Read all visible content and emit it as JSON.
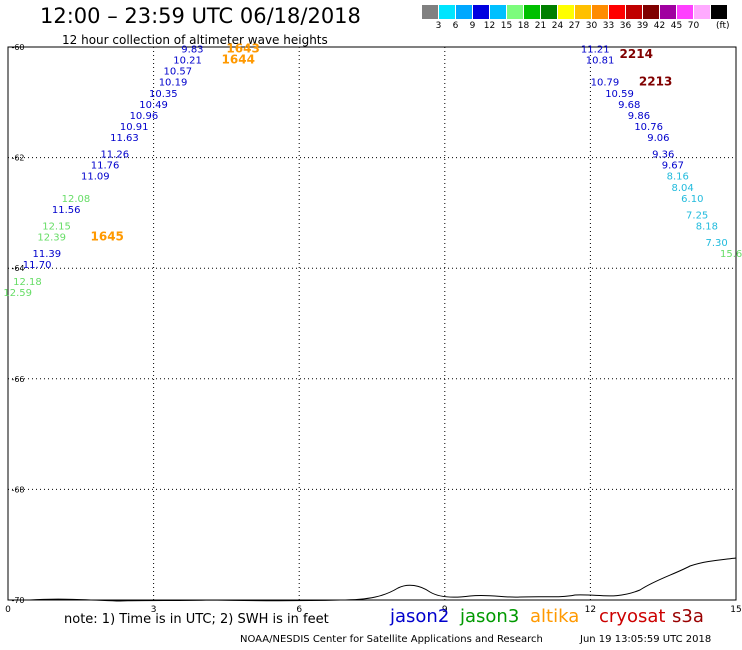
{
  "header": {
    "title": "12:00 – 23:59 UTC 06/18/2018",
    "subtitle": "12 hour collection of altimeter wave heights"
  },
  "color_scale": {
    "colors": [
      "#808080",
      "#00e5ff",
      "#00a8ff",
      "#0000e0",
      "#00c0ff",
      "#7cfc7c",
      "#00c000",
      "#008000",
      "#ffff00",
      "#ffc000",
      "#ff8c00",
      "#ff0000",
      "#c00000",
      "#800000",
      "#a000a0",
      "#ff40ff",
      "#ffaaff",
      "#000000"
    ],
    "labels": [
      "3",
      "6",
      "9",
      "12",
      "15",
      "18",
      "21",
      "24",
      "27",
      "30",
      "33",
      "36",
      "39",
      "42",
      "45",
      "70"
    ],
    "unit": "(ft)"
  },
  "chart_data": {
    "type": "scatter",
    "x_ticks": [
      "0",
      "3",
      "6",
      "9",
      "12",
      "15"
    ],
    "y_ticks": [
      "-60",
      "-62",
      "-64",
      "-66",
      "-68",
      "-70"
    ],
    "xlim": [
      0,
      15
    ],
    "ylim": [
      -70,
      -60
    ],
    "grid": true,
    "pass_labels": [
      {
        "text": "1643",
        "lon": 4.5,
        "lat": -60.1,
        "color": "#ff9900"
      },
      {
        "text": "1644",
        "lon": 4.4,
        "lat": -60.3,
        "color": "#ff9900"
      },
      {
        "text": "1645",
        "lon": 1.7,
        "lat": -63.5,
        "color": "#ff9900"
      },
      {
        "text": "2214",
        "lon": 12.6,
        "lat": -60.2,
        "color": "#800000"
      },
      {
        "text": "2213",
        "lon": 13.0,
        "lat": -60.7,
        "color": "#800000"
      }
    ],
    "series": [
      {
        "name": "jason2",
        "color": "#0000cc",
        "points": [
          {
            "lon": 3.8,
            "lat": -60.1,
            "v": "9.83"
          },
          {
            "lon": 3.7,
            "lat": -60.3,
            "v": "10.21"
          },
          {
            "lon": 3.5,
            "lat": -60.5,
            "v": "10.57"
          },
          {
            "lon": 3.4,
            "lat": -60.7,
            "v": "10.19"
          },
          {
            "lon": 3.2,
            "lat": -60.9,
            "v": "10.35"
          },
          {
            "lon": 3.0,
            "lat": -61.1,
            "v": "10.49"
          },
          {
            "lon": 2.8,
            "lat": -61.3,
            "v": "10.96"
          },
          {
            "lon": 2.6,
            "lat": -61.5,
            "v": "10.91"
          },
          {
            "lon": 2.4,
            "lat": -61.7,
            "v": "11.63"
          },
          {
            "lon": 2.2,
            "lat": -62.0,
            "v": "11.26"
          },
          {
            "lon": 2.0,
            "lat": -62.2,
            "v": "11.76"
          },
          {
            "lon": 1.8,
            "lat": -62.4,
            "v": "11.09"
          },
          {
            "lon": 1.2,
            "lat": -63.0,
            "v": "11.56"
          },
          {
            "lon": 0.8,
            "lat": -63.8,
            "v": "11.39"
          },
          {
            "lon": 0.6,
            "lat": -64.0,
            "v": "11.70"
          },
          {
            "lon": 12.1,
            "lat": -60.1,
            "v": "11.21"
          },
          {
            "lon": 12.2,
            "lat": -60.3,
            "v": "10.81"
          },
          {
            "lon": 12.3,
            "lat": -60.7,
            "v": "10.79"
          },
          {
            "lon": 12.6,
            "lat": -60.9,
            "v": "10.59"
          },
          {
            "lon": 12.8,
            "lat": -61.1,
            "v": "9.68"
          },
          {
            "lon": 13.0,
            "lat": -61.3,
            "v": "9.86"
          },
          {
            "lon": 13.2,
            "lat": -61.5,
            "v": "10.76"
          },
          {
            "lon": 13.4,
            "lat": -61.7,
            "v": "9.06"
          },
          {
            "lon": 13.5,
            "lat": -62.0,
            "v": "9.36"
          },
          {
            "lon": 13.7,
            "lat": -62.2,
            "v": "9.67"
          }
        ]
      },
      {
        "name": "altika",
        "color": "#66dd66",
        "points": [
          {
            "lon": 1.4,
            "lat": -62.8,
            "v": "12.08"
          },
          {
            "lon": 1.0,
            "lat": -63.3,
            "v": "12.15"
          },
          {
            "lon": 0.9,
            "lat": -63.5,
            "v": "12.39"
          },
          {
            "lon": 0.4,
            "lat": -64.3,
            "v": "12.18"
          },
          {
            "lon": 0.2,
            "lat": -64.5,
            "v": "12.59"
          },
          {
            "lon": 14.9,
            "lat": -63.8,
            "v": "15.6"
          }
        ]
      },
      {
        "name": "cryosat",
        "color": "#22bbdd",
        "points": [
          {
            "lon": 13.8,
            "lat": -62.4,
            "v": "8.16"
          },
          {
            "lon": 13.9,
            "lat": -62.6,
            "v": "8.04"
          },
          {
            "lon": 14.1,
            "lat": -62.8,
            "v": "6.10"
          },
          {
            "lon": 14.2,
            "lat": -63.1,
            "v": "7.25"
          },
          {
            "lon": 14.4,
            "lat": -63.3,
            "v": "8.18"
          },
          {
            "lon": 14.6,
            "lat": -63.6,
            "v": "7.30"
          }
        ]
      }
    ]
  },
  "footer": {
    "note": "note: 1) Time is in UTC; 2) SWH is in feet",
    "credit": "NOAA/NESDIS Center for Satellite Applications and Research",
    "timestamp": "Jun 19 13:05:59 UTC 2018",
    "legend": [
      {
        "label": "jason2",
        "color": "#0000cc"
      },
      {
        "label": "jason3",
        "color": "#009900"
      },
      {
        "label": "altika",
        "color": "#ff9900"
      },
      {
        "label": "cryosat",
        "color": "#cc0000"
      },
      {
        "label": "s3a",
        "color": "#990000"
      }
    ]
  }
}
